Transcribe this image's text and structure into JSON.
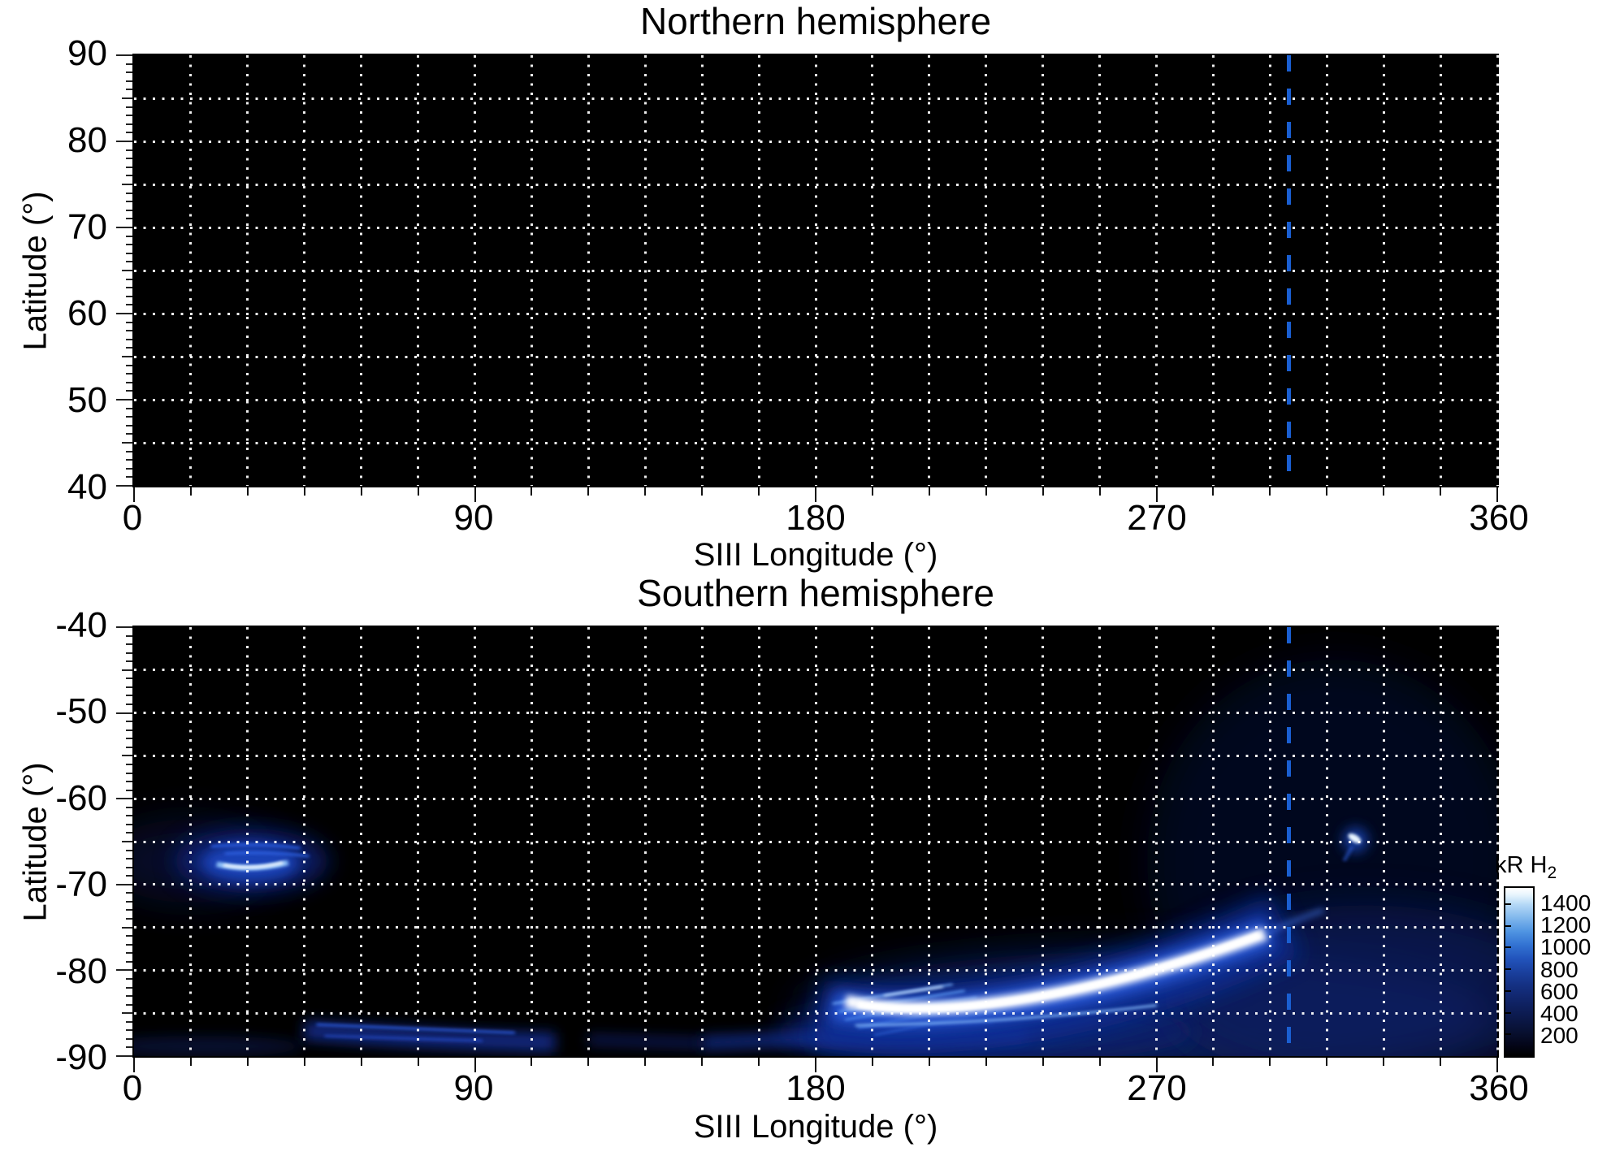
{
  "figure": {
    "reference_line": {
      "longitude_deg": 305,
      "color": "#1a5fd2",
      "style": "vertical dashed"
    },
    "grid_color": "#ffffff",
    "panel_background": "#000000",
    "panels": [
      {
        "title": "Northern hemisphere",
        "xlabel": "SIII Longitude (°)",
        "ylabel": "Latitude (°)",
        "x_tick_labels": [
          "0",
          "90",
          "180",
          "270",
          "360"
        ],
        "y_tick_labels": [
          "90",
          "80",
          "70",
          "60",
          "50",
          "40"
        ]
      },
      {
        "title": "Southern hemisphere",
        "xlabel": "SIII Longitude (°)",
        "ylabel": "Latitude (°)",
        "x_tick_labels": [
          "0",
          "90",
          "180",
          "270",
          "360"
        ],
        "y_tick_labels": [
          "-40",
          "-50",
          "-60",
          "-70",
          "-80",
          "-90"
        ]
      }
    ],
    "colorbar": {
      "title_main": "kR H",
      "title_sub": "2",
      "tick_labels": [
        "1400",
        "1200",
        "1000",
        "800",
        "600",
        "400",
        "200"
      ],
      "tick_values": [
        1400,
        1200,
        1000,
        800,
        600,
        400,
        200
      ],
      "value_range": [
        0,
        1550
      ]
    }
  },
  "chart_data": {
    "type": "heatmap",
    "panels": [
      {
        "title": "Northern hemisphere",
        "xlabel": "SIII Longitude (°)",
        "ylabel": "Latitude (°)",
        "xlim": [
          0,
          360
        ],
        "ylim": [
          40,
          90
        ],
        "x_major_ticks": [
          0,
          90,
          180,
          270,
          360
        ],
        "y_major_ticks": [
          40,
          50,
          60,
          70,
          80,
          90
        ],
        "grid": {
          "x_step_deg": 15,
          "y_step_deg": 5,
          "style": "white dotted"
        },
        "reference_line_longitude_deg": 305,
        "emission": "none visible; panel is entirely black"
      },
      {
        "title": "Southern hemisphere",
        "xlabel": "SIII Longitude (°)",
        "ylabel": "Latitude (°)",
        "xlim": [
          0,
          360
        ],
        "ylim": [
          -90,
          -40
        ],
        "x_major_ticks": [
          0,
          90,
          180,
          270,
          360
        ],
        "y_major_ticks": [
          -90,
          -80,
          -70,
          -60,
          -50,
          -40
        ],
        "grid": {
          "x_step_deg": 15,
          "y_step_deg": 5,
          "style": "white dotted"
        },
        "reference_line_longitude_deg": 305,
        "colorbar": {
          "label": "kR H2",
          "ticks": [
            200,
            400,
            600,
            800,
            1000,
            1200,
            1400
          ],
          "range": [
            0,
            1550
          ],
          "colormap": "black to dark blue to blue to white"
        },
        "features": [
          {
            "name": "main auroral arc",
            "lon_deg": [
              188,
              299
            ],
            "lat_deg": [
              -84,
              -76
            ],
            "peak_kR": 1500,
            "morphology": "saturated white arc rising in latitude toward higher longitude, feathered streaks at the low-longitude end, diffuse blue emission beneath; tip ends just before the 305° dashed line"
          },
          {
            "name": "secondary arc patch",
            "lon_deg": [
              18,
              45
            ],
            "lat_deg": [
              -69,
              -64
            ],
            "peak_kR": 900,
            "morphology": "compact diffuse blue patch with a thin bright core arc near -67.5°"
          },
          {
            "name": "isolated spot",
            "lon_deg": [
              321,
              324
            ],
            "lat_deg": [
              -66,
              -64
            ],
            "peak_kR": 1000,
            "morphology": "small bright blue-white blob on the -65° gridline"
          },
          {
            "name": "poleward diffuse band",
            "lon_deg": [
              48,
              360
            ],
            "lat_deg": [
              -89,
              -86
            ],
            "peak_kR": 350,
            "morphology": "faint streaky blue band hugging the bottom of the panel"
          },
          {
            "name": "faint diffuse wash",
            "lon_deg": [
              255,
              360
            ],
            "lat_deg": [
              -90,
              -42
            ],
            "peak_kR": 150,
            "morphology": "very faint navy swirl texture over the right portion of the panel"
          }
        ]
      }
    ]
  }
}
